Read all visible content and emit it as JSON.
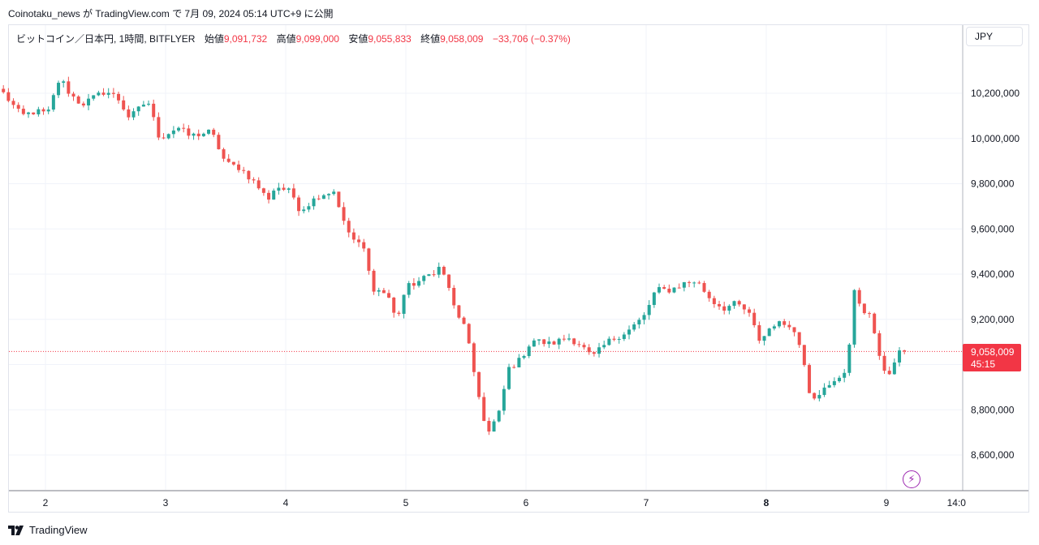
{
  "header": {
    "published_line": "Coinotaku_news が TradingView.com で 7月 09, 2024 05:14 UTC+9 に公開"
  },
  "legend": {
    "symbol": "ビットコイン／日本円, 1時間, BITFLYER",
    "open_label": "始値",
    "open_value": "9,091,732",
    "high_label": "高値",
    "high_value": "9,099,000",
    "low_label": "安値",
    "low_value": "9,055,833",
    "close_label": "終値",
    "close_value": "9,058,009",
    "change": "−33,706 (−0.37%)"
  },
  "currency": "JPY",
  "last_price": {
    "price": "9,058,009",
    "countdown": "45:15"
  },
  "footer": {
    "brand": "TradingView",
    "logo_icon": "tradingview-logo-icon"
  },
  "colors": {
    "up": "#26a69a",
    "down": "#ef5350",
    "grid": "#f0f3fa",
    "price_line": "#f23645"
  },
  "chart_data": {
    "type": "candlestick",
    "y_axis": {
      "ticks": [
        8600000,
        8800000,
        9000000,
        9200000,
        9400000,
        9600000,
        9800000,
        10000000,
        10200000
      ],
      "tick_labels": [
        "8,600,000",
        "8,800,000",
        "9,000,000",
        "9,200,000",
        "9,400,000",
        "9,600,000",
        "9,800,000",
        "10,000,000",
        "10,200,000"
      ],
      "range": [
        8450000,
        10400000
      ]
    },
    "x_axis": {
      "ticks": [
        {
          "label": "2",
          "day": 2
        },
        {
          "label": "3",
          "day": 3
        },
        {
          "label": "4",
          "day": 4
        },
        {
          "label": "5",
          "day": 5
        },
        {
          "label": "6",
          "day": 6
        },
        {
          "label": "7",
          "day": 7
        },
        {
          "label": "8",
          "day": 8,
          "bold": true
        },
        {
          "label": "9",
          "day": 9
        },
        {
          "label": "14:0",
          "day": 9.583
        }
      ]
    },
    "last_close": 9058009,
    "anchors": [
      [
        1.65,
        10200000
      ],
      [
        1.8,
        10100000
      ],
      [
        1.92,
        10120000
      ],
      [
        2.02,
        10110000
      ],
      [
        2.12,
        10270000
      ],
      [
        2.2,
        10200000
      ],
      [
        2.3,
        10150000
      ],
      [
        2.5,
        10210000
      ],
      [
        2.6,
        10180000
      ],
      [
        2.7,
        10090000
      ],
      [
        2.85,
        10170000
      ],
      [
        2.95,
        10000000
      ],
      [
        3.1,
        10050000
      ],
      [
        3.2,
        10010000
      ],
      [
        3.38,
        10030000
      ],
      [
        3.5,
        9890000
      ],
      [
        3.62,
        9870000
      ],
      [
        3.75,
        9800000
      ],
      [
        3.85,
        9730000
      ],
      [
        3.92,
        9790000
      ],
      [
        4.05,
        9760000
      ],
      [
        4.12,
        9680000
      ],
      [
        4.28,
        9750000
      ],
      [
        4.42,
        9770000
      ],
      [
        4.46,
        9650000
      ],
      [
        4.55,
        9560000
      ],
      [
        4.65,
        9510000
      ],
      [
        4.72,
        9340000
      ],
      [
        4.85,
        9310000
      ],
      [
        4.92,
        9190000
      ],
      [
        5.0,
        9340000
      ],
      [
        5.15,
        9380000
      ],
      [
        5.28,
        9430000
      ],
      [
        5.35,
        9360000
      ],
      [
        5.42,
        9210000
      ],
      [
        5.5,
        9180000
      ],
      [
        5.55,
        8990000
      ],
      [
        5.62,
        8830000
      ],
      [
        5.68,
        8690000
      ],
      [
        5.78,
        8790000
      ],
      [
        5.85,
        8980000
      ],
      [
        5.95,
        9020000
      ],
      [
        6.05,
        9110000
      ],
      [
        6.2,
        9090000
      ],
      [
        6.35,
        9120000
      ],
      [
        6.45,
        9090000
      ],
      [
        6.55,
        9030000
      ],
      [
        6.68,
        9100000
      ],
      [
        6.85,
        9150000
      ],
      [
        6.98,
        9210000
      ],
      [
        7.08,
        9330000
      ],
      [
        7.2,
        9330000
      ],
      [
        7.32,
        9360000
      ],
      [
        7.42,
        9370000
      ],
      [
        7.55,
        9280000
      ],
      [
        7.65,
        9250000
      ],
      [
        7.75,
        9270000
      ],
      [
        7.85,
        9230000
      ],
      [
        7.95,
        9100000
      ],
      [
        8.05,
        9180000
      ],
      [
        8.2,
        9180000
      ],
      [
        8.3,
        9060000
      ],
      [
        8.37,
        8850000
      ],
      [
        8.45,
        8880000
      ],
      [
        8.55,
        8910000
      ],
      [
        8.68,
        8990000
      ],
      [
        8.72,
        9330000
      ],
      [
        8.8,
        9250000
      ],
      [
        8.88,
        9200000
      ],
      [
        8.95,
        9000000
      ],
      [
        9.02,
        8960000
      ],
      [
        9.12,
        9060000
      ],
      [
        9.18,
        9058009
      ]
    ]
  }
}
